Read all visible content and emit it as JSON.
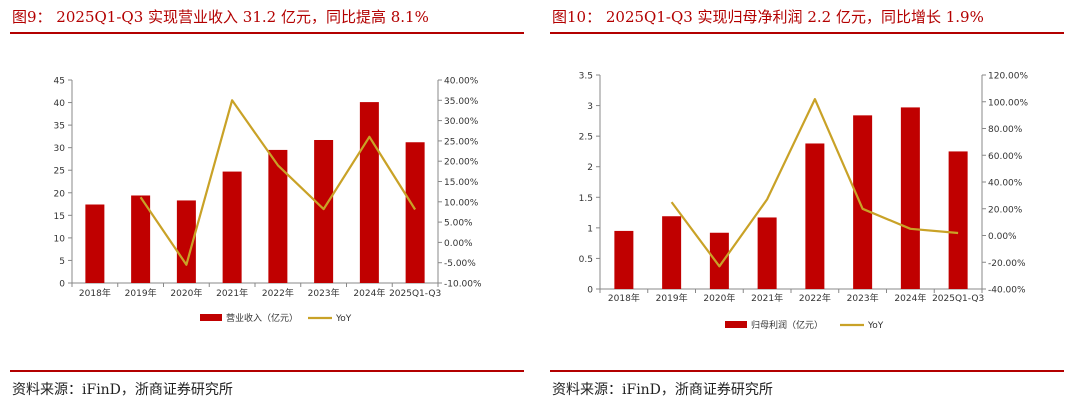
{
  "panels": [
    {
      "title": "图9： 2025Q1-Q3 实现营业收入 31.2 亿元，同比提高 8.1%",
      "source": "资料来源：iFinD，浙商证券研究所"
    },
    {
      "title": "图10： 2025Q1-Q3 实现归母净利润 2.2 亿元，同比增长 1.9%",
      "source": "资料来源：iFinD，浙商证券研究所"
    }
  ],
  "colors": {
    "bar": "#c00000",
    "line": "#c9a227",
    "rule": "#b30000"
  },
  "chart_data": [
    {
      "type": "bar",
      "title": "",
      "categories": [
        "2018年",
        "2019年",
        "2020年",
        "2021年",
        "2022年",
        "2023年",
        "2024年",
        "2025Q1-Q3"
      ],
      "series": [
        {
          "name": "营业收入（亿元）",
          "kind": "bar",
          "axis": "left",
          "values": [
            17.4,
            19.4,
            18.3,
            24.7,
            29.5,
            31.7,
            40.1,
            31.2
          ]
        },
        {
          "name": "YoY",
          "kind": "line",
          "axis": "right",
          "values": [
            null,
            11.1,
            -5.5,
            35.0,
            19.0,
            8.2,
            26.0,
            8.1
          ]
        }
      ],
      "y_left": {
        "min": 0,
        "max": 45,
        "step": 5,
        "ticks": [
          "0",
          "5",
          "10",
          "15",
          "20",
          "25",
          "30",
          "35",
          "40",
          "45"
        ]
      },
      "y_right": {
        "min": -10,
        "max": 40,
        "step": 5,
        "ticks": [
          "-10.00%",
          "-5.00%",
          "0.00%",
          "5.00%",
          "10.00%",
          "15.00%",
          "20.00%",
          "25.00%",
          "30.00%",
          "35.00%",
          "40.00%"
        ]
      },
      "legend": [
        "营业收入（亿元）",
        "YoY"
      ]
    },
    {
      "type": "bar",
      "title": "",
      "categories": [
        "2018年",
        "2019年",
        "2020年",
        "2021年",
        "2022年",
        "2023年",
        "2024年",
        "2025Q1-Q3"
      ],
      "series": [
        {
          "name": "归母利润（亿元）",
          "kind": "bar",
          "axis": "left",
          "values": [
            0.95,
            1.19,
            0.92,
            1.17,
            2.38,
            2.84,
            2.97,
            2.25
          ]
        },
        {
          "name": "YoY",
          "kind": "line",
          "axis": "right",
          "values": [
            null,
            25.0,
            -23.0,
            27.0,
            102.0,
            20.0,
            5.0,
            1.9
          ]
        }
      ],
      "y_left": {
        "min": 0,
        "max": 3.5,
        "step": 0.5,
        "ticks": [
          "0",
          "0.5",
          "1",
          "1.5",
          "2",
          "2.5",
          "3",
          "3.5"
        ]
      },
      "y_right": {
        "min": -40,
        "max": 120,
        "step": 20,
        "ticks": [
          "-40.00%",
          "-20.00%",
          "0.00%",
          "20.00%",
          "40.00%",
          "60.00%",
          "80.00%",
          "100.00%",
          "120.00%"
        ]
      },
      "legend": [
        "归母利润（亿元）",
        "YoY"
      ]
    }
  ]
}
